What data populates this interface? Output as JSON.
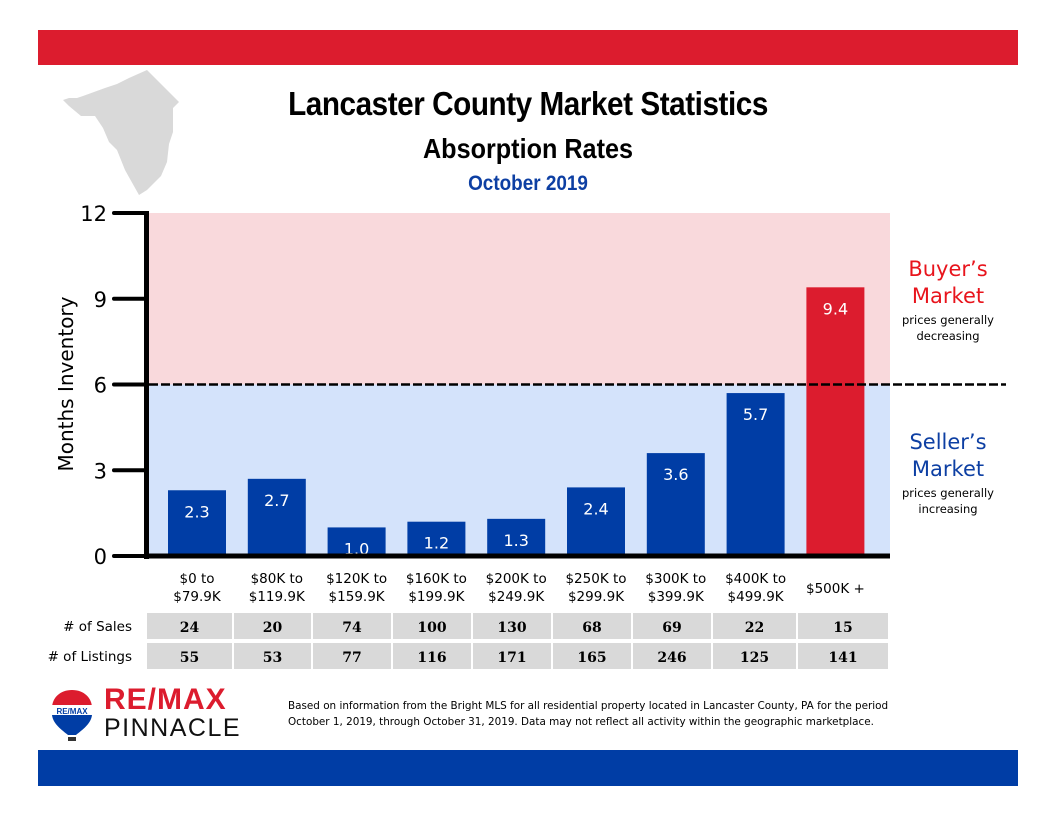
{
  "colors": {
    "brand_red": "#DC1C2E",
    "brand_blue": "#003DA5",
    "bar_blue": "#003DA5",
    "bar_red": "#DC1C2E",
    "buyers_zone": "#F9D9DC",
    "sellers_zone": "#D4E3FB",
    "table_cell": "#D9D9D9",
    "map_gray": "#D9D9D9",
    "date_blue": "#0D3FA3",
    "buyer_text": "#E8141C",
    "seller_text": "#0D3FA3"
  },
  "header": {
    "title": "Lancaster County Market Statistics",
    "subtitle": "Absorption Rates",
    "date": "October 2019"
  },
  "chart_data": {
    "type": "bar",
    "title": "Absorption Rates",
    "xlabel": "",
    "ylabel": "Months Inventory",
    "ylim": [
      0,
      12
    ],
    "yticks": [
      0,
      3,
      6,
      9,
      12
    ],
    "grid": false,
    "categories": [
      [
        "$0 to",
        "$79.9K"
      ],
      [
        "$80K to",
        "$119.9K"
      ],
      [
        "$120K to",
        "$159.9K"
      ],
      [
        "$160K to",
        "$199.9K"
      ],
      [
        "$200K to",
        "$249.9K"
      ],
      [
        "$250K to",
        "$299.9K"
      ],
      [
        "$300K to",
        "$399.9K"
      ],
      [
        "$400K to",
        "$499.9K"
      ],
      [
        "$500K +"
      ]
    ],
    "values": [
      2.3,
      2.7,
      1.0,
      1.2,
      1.3,
      2.4,
      3.6,
      5.7,
      9.4
    ],
    "value_labels": [
      "2.3",
      "2.7",
      "1.0",
      "1.2",
      "1.3",
      "2.4",
      "3.6",
      "5.7",
      "9.4"
    ],
    "threshold": 6,
    "zones": [
      {
        "name": "Buyer's Market",
        "from": 6,
        "to": 12,
        "title_lines": [
          "Buyer’s",
          "Market"
        ],
        "note_lines": [
          "prices generally",
          "decreasing"
        ]
      },
      {
        "name": "Seller's Market",
        "from": 0,
        "to": 6,
        "title_lines": [
          "Seller’s",
          "Market"
        ],
        "note_lines": [
          "prices generally",
          "increasing"
        ]
      }
    ],
    "table": {
      "rows": [
        {
          "label": "# of Sales",
          "values": [
            "24",
            "20",
            "74",
            "100",
            "130",
            "68",
            "69",
            "22",
            "15"
          ]
        },
        {
          "label": "# of Listings",
          "values": [
            "55",
            "53",
            "77",
            "116",
            "171",
            "165",
            "246",
            "125",
            "141"
          ]
        }
      ]
    }
  },
  "footer": {
    "logo_top": "RE/MAX",
    "logo_bottom": "PINNACLE",
    "balloon_text": "RE/MAX",
    "disclaimer_line1": "Based on information from the Bright MLS for all residential property located in Lancaster County, PA for the period",
    "disclaimer_line2": "October 1, 2019, through October 31, 2019.  Data may not reflect all activity within the geographic marketplace."
  }
}
